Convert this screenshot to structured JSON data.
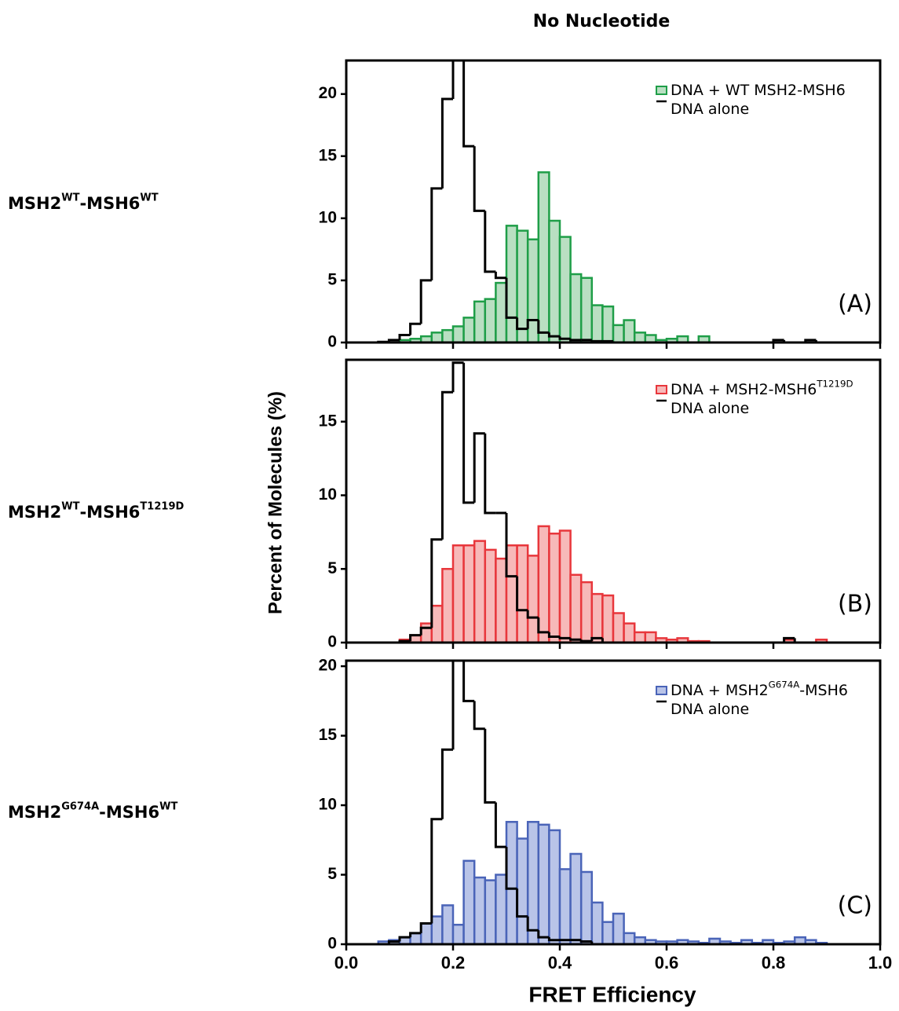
{
  "title": "No Nucleotide",
  "x_label": "FRET Efficiency",
  "y_label": "Percent of Molecules (%)",
  "chart_data": [
    {
      "type": "histogram",
      "panel_label": "(A)",
      "legend": "upper right",
      "row_label": [
        {
          "text": "MSH2"
        },
        {
          "text": "WT",
          "sup": true
        },
        {
          "text": "-MSH6"
        },
        {
          "text": "WT",
          "sup": true
        }
      ],
      "bins": [
        0,
        0.02,
        0.04,
        0.06,
        0.08,
        0.1,
        0.12,
        0.14,
        0.16,
        0.18,
        0.2,
        0.22,
        0.24,
        0.26,
        0.28,
        0.3,
        0.32,
        0.34,
        0.36,
        0.38,
        0.4,
        0.42,
        0.44,
        0.46,
        0.48,
        0.5,
        0.52,
        0.54,
        0.56,
        0.58,
        0.6,
        0.62,
        0.64,
        0.66,
        0.68,
        0.7,
        0.72,
        0.74,
        0.76,
        0.78,
        0.8,
        0.82,
        0.84,
        0.86,
        0.88,
        0.9,
        0.92,
        0.94,
        0.96,
        0.98,
        1
      ],
      "xlim": [
        0,
        1
      ],
      "xticks": [
        0,
        0.2,
        0.4,
        0.6,
        0.8,
        1
      ],
      "xtick_labels": false,
      "ylim": [
        0,
        22.7
      ],
      "yticks": [
        0,
        5,
        10,
        15,
        20
      ],
      "series": [
        {
          "name": [
            {
              "text": "DNA + WT MSH2-MSH6"
            }
          ],
          "style": "bars",
          "color": "#1f9e48",
          "fill": "#b9dfc2",
          "values": [
            0,
            0,
            0,
            0,
            0,
            0.2,
            0.3,
            0.5,
            0.8,
            1.0,
            1.3,
            2.0,
            3.3,
            3.5,
            4.8,
            9.4,
            9.0,
            8.3,
            13.7,
            9.8,
            8.5,
            5.5,
            5.2,
            3.0,
            2.9,
            1.4,
            1.8,
            0.8,
            0.6,
            0.2,
            0.3,
            0.5,
            0,
            0.5,
            0,
            0,
            0,
            0,
            0,
            0,
            0,
            0,
            0,
            0,
            0,
            0,
            0,
            0,
            0,
            0
          ]
        },
        {
          "name": [
            {
              "text": "DNA alone"
            }
          ],
          "style": "step",
          "color": "#000000",
          "values": [
            0,
            0,
            0,
            0.05,
            0.2,
            0.6,
            1.5,
            5.0,
            12.4,
            19.6,
            24,
            15.8,
            10.6,
            5.7,
            5.2,
            2.0,
            1.1,
            1.8,
            0.8,
            0.5,
            0.3,
            0.2,
            0.2,
            0.1,
            0.1,
            0,
            0,
            0,
            0,
            0,
            0,
            0,
            0,
            0,
            0,
            0,
            0,
            0,
            0,
            0,
            0.2,
            0,
            0,
            0.2,
            0,
            0,
            0,
            0,
            0,
            0
          ]
        }
      ]
    },
    {
      "type": "histogram",
      "panel_label": "(B)",
      "legend": "upper right",
      "row_label": [
        {
          "text": "MSH2"
        },
        {
          "text": "WT",
          "sup": true
        },
        {
          "text": "-MSH6"
        },
        {
          "text": "T1219D",
          "sup": true
        }
      ],
      "bins": [
        0,
        0.02,
        0.04,
        0.06,
        0.08,
        0.1,
        0.12,
        0.14,
        0.16,
        0.18,
        0.2,
        0.22,
        0.24,
        0.26,
        0.28,
        0.3,
        0.32,
        0.34,
        0.36,
        0.38,
        0.4,
        0.42,
        0.44,
        0.46,
        0.48,
        0.5,
        0.52,
        0.54,
        0.56,
        0.58,
        0.6,
        0.62,
        0.64,
        0.66,
        0.68,
        0.7,
        0.72,
        0.74,
        0.76,
        0.78,
        0.8,
        0.82,
        0.84,
        0.86,
        0.88,
        0.9,
        0.92,
        0.94,
        0.96,
        0.98,
        1
      ],
      "xlim": [
        0,
        1
      ],
      "xticks": [
        0,
        0.2,
        0.4,
        0.6,
        0.8,
        1
      ],
      "xtick_labels": false,
      "ylim": [
        0,
        19.2
      ],
      "yticks": [
        0,
        5,
        10,
        15
      ],
      "series": [
        {
          "name": [
            {
              "text": "DNA + MSH2-MSH6"
            },
            {
              "text": "T1219D",
              "sup": true
            }
          ],
          "style": "bars",
          "color": "#e8373c",
          "fill": "#f7b9b9",
          "values": [
            0,
            0,
            0,
            0,
            0,
            0.2,
            0.5,
            1.3,
            2.5,
            5.0,
            6.6,
            6.6,
            6.9,
            6.3,
            5.7,
            6.6,
            6.6,
            5.9,
            7.9,
            7.4,
            7.6,
            4.6,
            4.1,
            3.3,
            3.2,
            2.0,
            1.3,
            0.7,
            0.7,
            0.3,
            0.2,
            0.3,
            0.1,
            0.1,
            0,
            0,
            0,
            0,
            0,
            0,
            0,
            0.2,
            0,
            0,
            0.2,
            0,
            0,
            0,
            0,
            0
          ]
        },
        {
          "name": [
            {
              "text": "DNA alone"
            }
          ],
          "style": "step",
          "color": "#000000",
          "values": [
            0,
            0,
            0,
            0,
            0,
            0.1,
            0.5,
            1.0,
            7.0,
            17.0,
            19.0,
            9.5,
            14.2,
            8.8,
            8.8,
            4.5,
            2.2,
            1.7,
            0.7,
            0.4,
            0.3,
            0.2,
            0.1,
            0.3,
            0,
            0,
            0,
            0,
            0,
            0,
            0,
            0,
            0,
            0,
            0,
            0,
            0,
            0,
            0,
            0,
            0,
            0.3,
            0,
            0,
            0,
            0,
            0,
            0,
            0,
            0
          ]
        }
      ]
    },
    {
      "type": "histogram",
      "panel_label": "(C)",
      "legend": "upper right",
      "row_label": [
        {
          "text": "MSH2"
        },
        {
          "text": "G674A",
          "sup": true
        },
        {
          "text": "-MSH6"
        },
        {
          "text": "WT",
          "sup": true
        }
      ],
      "bins": [
        0,
        0.02,
        0.04,
        0.06,
        0.08,
        0.1,
        0.12,
        0.14,
        0.16,
        0.18,
        0.2,
        0.22,
        0.24,
        0.26,
        0.28,
        0.3,
        0.32,
        0.34,
        0.36,
        0.38,
        0.4,
        0.42,
        0.44,
        0.46,
        0.48,
        0.5,
        0.52,
        0.54,
        0.56,
        0.58,
        0.6,
        0.62,
        0.64,
        0.66,
        0.68,
        0.7,
        0.72,
        0.74,
        0.76,
        0.78,
        0.8,
        0.82,
        0.84,
        0.86,
        0.88,
        0.9,
        0.92,
        0.94,
        0.96,
        0.98,
        1
      ],
      "xlim": [
        0,
        1
      ],
      "xticks": [
        {
          "value": 0,
          "label": "0.0"
        },
        {
          "value": 0.2,
          "label": "0.2"
        },
        {
          "value": 0.4,
          "label": "0.4"
        },
        {
          "value": 0.6,
          "label": "0.6"
        },
        {
          "value": 0.8,
          "label": "0.8"
        },
        {
          "value": 1,
          "label": "1.0"
        }
      ],
      "xtick_labels": true,
      "ylim": [
        0,
        20.4
      ],
      "yticks": [
        0,
        5,
        10,
        15,
        20
      ],
      "series": [
        {
          "name": [
            {
              "text": "DNA + MSH2"
            },
            {
              "text": "G674A",
              "sup": true
            },
            {
              "text": "-MSH6"
            }
          ],
          "style": "bars",
          "color": "#4a64b8",
          "fill": "#b9c4e8",
          "values": [
            0,
            0,
            0,
            0.2,
            0.3,
            0.5,
            0.8,
            1.5,
            2.0,
            2.8,
            1.4,
            6.0,
            4.8,
            4.6,
            5.0,
            8.8,
            7.6,
            8.8,
            8.6,
            8.2,
            5.4,
            6.5,
            5.2,
            3.0,
            1.6,
            2.2,
            0.8,
            0.5,
            0.3,
            0.2,
            0.2,
            0.3,
            0.2,
            0.1,
            0.4,
            0.2,
            0.1,
            0.3,
            0.1,
            0.3,
            0.1,
            0.2,
            0.5,
            0.3,
            0.1,
            0,
            0,
            0,
            0,
            0
          ]
        },
        {
          "name": [
            {
              "text": "DNA alone"
            }
          ],
          "style": "step",
          "color": "#000000",
          "values": [
            0,
            0,
            0,
            0,
            0.2,
            0.5,
            0.8,
            1.5,
            9.0,
            14.0,
            20.4,
            17.5,
            15.5,
            10.2,
            7.0,
            4.0,
            2.0,
            1.0,
            0.5,
            0.3,
            0.3,
            0.3,
            0.2,
            0,
            0,
            0,
            0,
            0,
            0,
            0,
            0,
            0,
            0,
            0,
            0,
            0,
            0,
            0,
            0,
            0,
            0,
            0,
            0,
            0,
            0,
            0,
            0,
            0,
            0,
            0
          ]
        }
      ]
    }
  ]
}
